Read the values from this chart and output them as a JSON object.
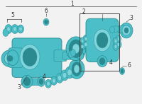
{
  "bg_color": "#f2f2f2",
  "teal": "#4bbec7",
  "teal_dark": "#2a8a90",
  "teal_mid": "#3aacb5",
  "teal_light": "#7dd4da",
  "line_color": "#444444",
  "label_color": "#333333",
  "figw": 2.0,
  "figh": 1.47,
  "dpi": 100
}
